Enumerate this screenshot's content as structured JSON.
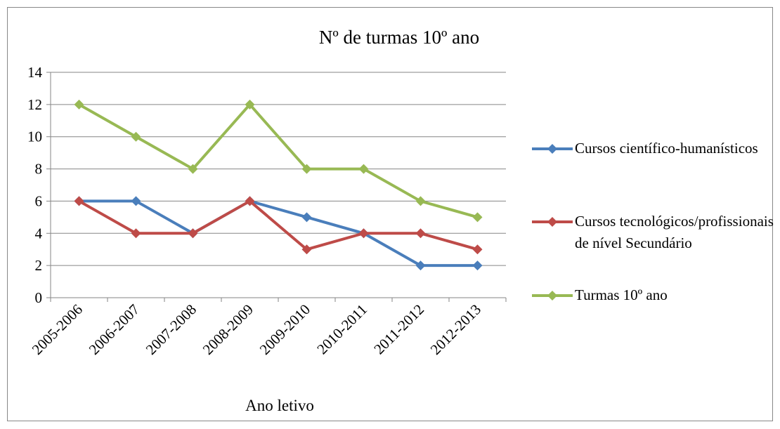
{
  "chart_data": {
    "type": "line",
    "title": "Nº de turmas 10º ano",
    "x_label": "Ano letivo",
    "categories": [
      "2005-2006",
      "2006-2007",
      "2007-2008",
      "2008-2009",
      "2009-2010",
      "2010-2011",
      "2011-2012",
      "2012-2013"
    ],
    "series": [
      {
        "name": "Cursos científico-humanísticos",
        "color": "#4a7ebb",
        "values": [
          6,
          6,
          4,
          6,
          5,
          4,
          2,
          2
        ]
      },
      {
        "name": "Cursos tecnológicos/profissionais de nível Secundário",
        "color": "#be4b48",
        "values": [
          6,
          4,
          4,
          6,
          3,
          4,
          4,
          3
        ]
      },
      {
        "name": "Turmas 10º ano",
        "color": "#98b954",
        "values": [
          12,
          10,
          8,
          12,
          8,
          8,
          6,
          5
        ]
      }
    ],
    "ylim": [
      0,
      14
    ],
    "yticks": [
      0,
      2,
      4,
      6,
      8,
      10,
      12,
      14
    ],
    "grid": true,
    "legend": "right"
  }
}
